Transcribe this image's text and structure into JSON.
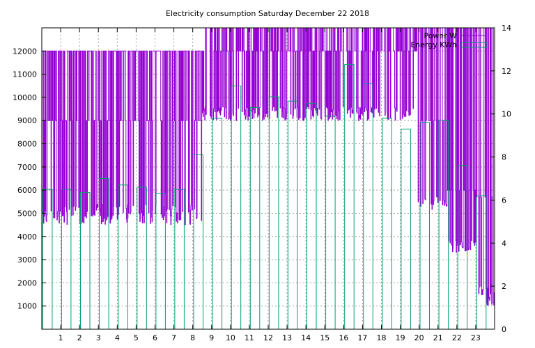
{
  "chart_data": {
    "type": "line",
    "title": "Electricity consumption Saturday December 22 2018",
    "xlabel": "",
    "ylabel": "",
    "y2label": "",
    "xlim": [
      0,
      24
    ],
    "ylim": [
      0,
      13000
    ],
    "y2lim": [
      0,
      14
    ],
    "grid": true,
    "legend_position": "top-right",
    "x_tick_labels": [
      "1",
      "2",
      "3",
      "4",
      "5",
      "6",
      "7",
      "8",
      "9",
      "10",
      "11",
      "12",
      "13",
      "14",
      "15",
      "16",
      "17",
      "18",
      "19",
      "20",
      "21",
      "22",
      "23"
    ],
    "x_ticks": [
      1,
      2,
      3,
      4,
      5,
      6,
      7,
      8,
      9,
      10,
      11,
      12,
      13,
      14,
      15,
      16,
      17,
      18,
      19,
      20,
      21,
      22,
      23
    ],
    "y_ticks": [
      1000,
      2000,
      3000,
      4000,
      5000,
      6000,
      7000,
      8000,
      9000,
      10000,
      11000,
      12000
    ],
    "y_tick_labels": [
      "1000",
      "2000",
      "3000",
      "4000",
      "5000",
      "6000",
      "7000",
      "8000",
      "9000",
      "10000",
      "11000",
      "12000"
    ],
    "y2_ticks": [
      0,
      2,
      4,
      6,
      8,
      10,
      12,
      14
    ],
    "y2_tick_labels": [
      "0",
      "2",
      "4",
      "6",
      "8",
      "10",
      "12",
      "14"
    ],
    "series": [
      {
        "name": "Power W",
        "axis": "y1",
        "color": "#9400d3",
        "style": "steps",
        "segments": [
          {
            "x0": 0.0,
            "x1": 1.0,
            "min": 4500,
            "max": 12000,
            "base": 9000
          },
          {
            "x0": 1.0,
            "x1": 8.5,
            "min": 4500,
            "max": 12000,
            "base": 9000
          },
          {
            "x0": 8.5,
            "x1": 19.9,
            "min": 9000,
            "max": 13000,
            "base": 12000
          },
          {
            "x0": 19.9,
            "x1": 21.5,
            "min": 5100,
            "max": 13000,
            "base": 9000
          },
          {
            "x0": 21.5,
            "x1": 23.0,
            "min": 3300,
            "max": 13000,
            "base": 6000
          },
          {
            "x0": 23.0,
            "x1": 24.0,
            "min": 1000,
            "max": 13000,
            "base": 5700
          }
        ]
      },
      {
        "name": "Energy KWh",
        "axis": "y2",
        "color": "#009e73",
        "style": "boxes",
        "hours": [
          0,
          1,
          2,
          3,
          4,
          5,
          6,
          7,
          8,
          9,
          10,
          11,
          12,
          13,
          14,
          15,
          16,
          17,
          18,
          19,
          20,
          21,
          22,
          23
        ],
        "values": [
          6.5,
          6.5,
          6.35,
          7.0,
          6.7,
          6.6,
          6.3,
          6.5,
          8.1,
          9.8,
          11.3,
          10.3,
          10.8,
          10.6,
          10.5,
          9.9,
          12.3,
          11.4,
          9.8,
          9.3,
          9.6,
          9.7,
          7.6,
          6.2
        ]
      }
    ]
  }
}
